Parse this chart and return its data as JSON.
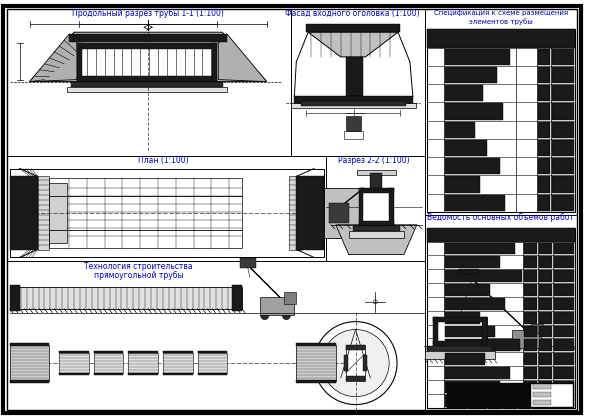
{
  "bg_color": "#ffffff",
  "border_color": "#000000",
  "line_color": "#000000",
  "blue_text_color": "#0000cd",
  "dark_text_color": "#1a1acd",
  "title_top_left": "Продольный разрез трубы 1-1 (1:100)",
  "title_top_mid": "Фасад входного оголовка (1:100)",
  "title_top_right_line1": "Спецификация к схеме размещения",
  "title_top_right_line2": "элементов трубы",
  "title_mid_left": "План (1:100)",
  "title_mid_center": "Разрез 2-2 (1:100)",
  "title_mid_right": "Ведомость основных объемов работ",
  "title_bottom_left_line1": "Технология строительства",
  "title_bottom_left_line2": "прямоугольной трубы",
  "fig_width": 5.91,
  "fig_height": 4.19,
  "dpi": 100
}
